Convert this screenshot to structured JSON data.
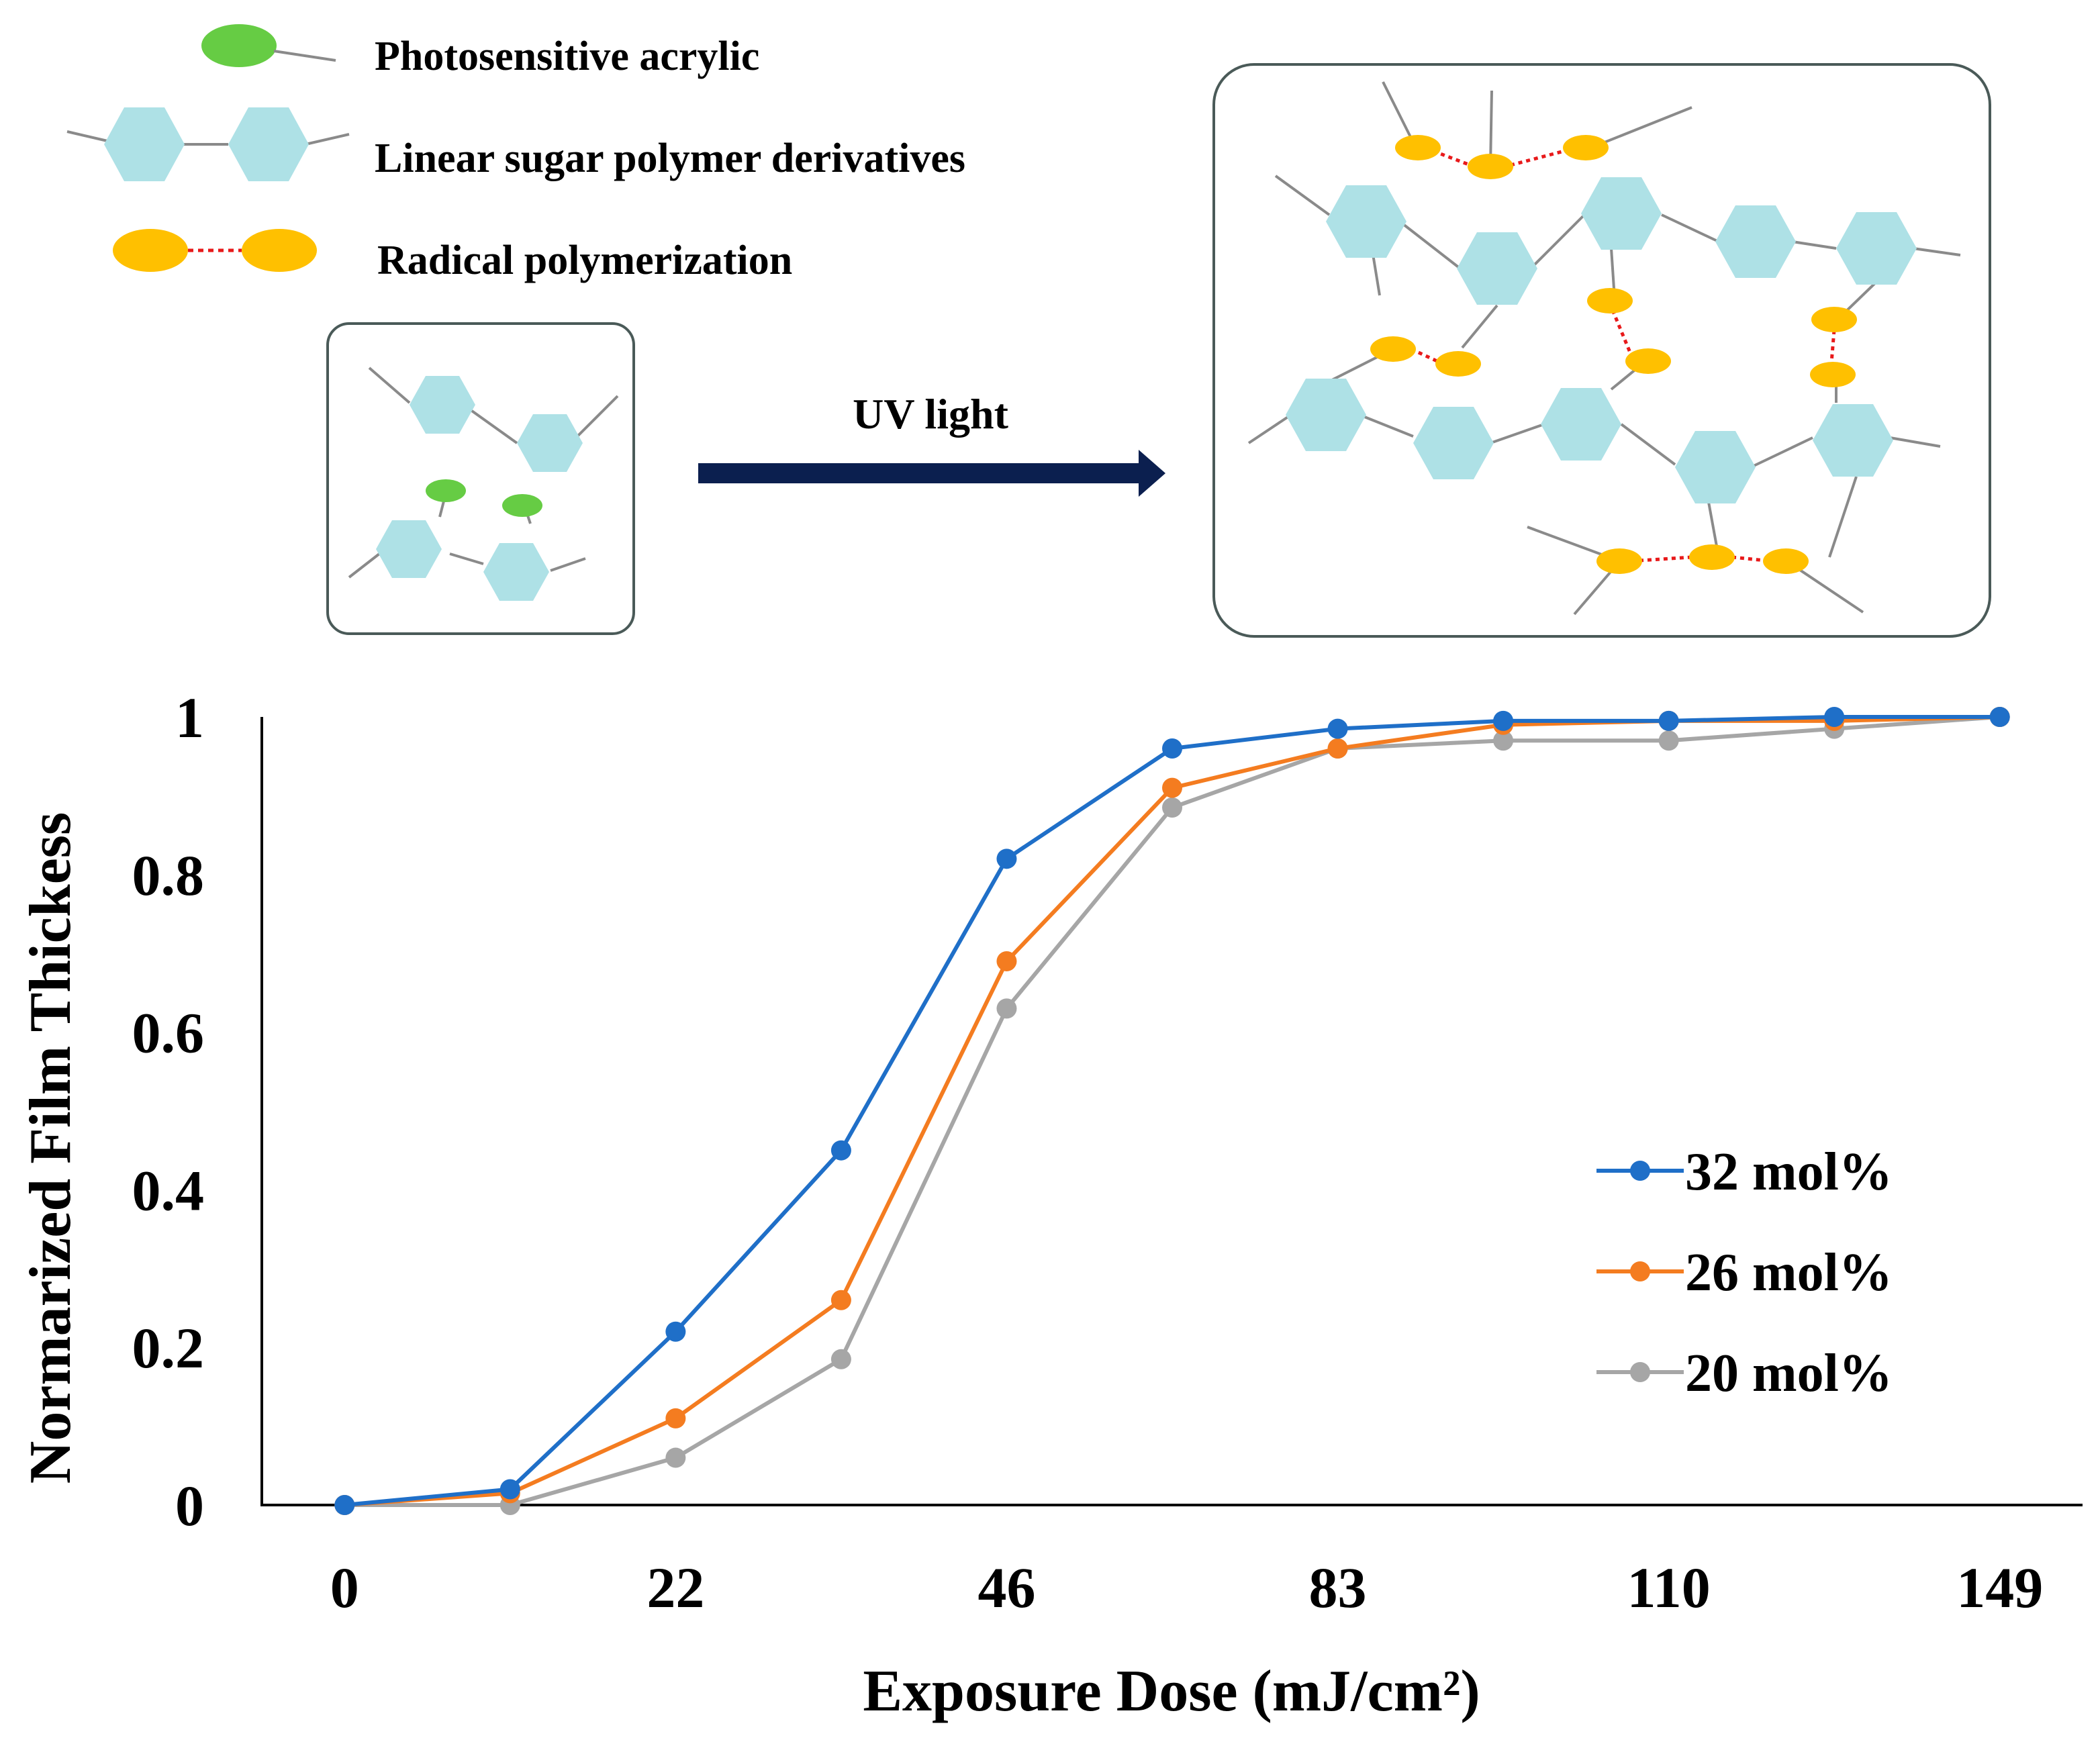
{
  "diagram": {
    "legend": [
      {
        "label": "Photosensitive acrylic",
        "icon": "green-ellipse-icon",
        "color": "#66cc44"
      },
      {
        "label": "Linear sugar polymer derivatives",
        "icon": "hexagon-pair-icon",
        "color": "#aee1e6"
      },
      {
        "label": "Radical polymerization",
        "icon": "yellow-ellipse-pair-icon",
        "color": "#ffc000"
      }
    ],
    "arrow_label": "UV light",
    "colors": {
      "hexagon": "#aee1e6",
      "acrylic": "#66cc44",
      "radical": "#ffc000",
      "bond": "#e8191a",
      "arrow": "#0b1f4f",
      "box_border": "#4a5a58",
      "line": "#8a8a8a"
    }
  },
  "chart_data": {
    "type": "line",
    "title": "",
    "xlabel": "Exposure Dose (mJ/cm²)",
    "ylabel": "Normarized Film Thickess",
    "x_tick_labels": [
      "0",
      "22",
      "46",
      "83",
      "110",
      "149"
    ],
    "y_tick_labels": [
      "0",
      "0.2",
      "0.4",
      "0.6",
      "0.8",
      "1"
    ],
    "ylim": [
      0,
      1
    ],
    "x_positions": [
      0,
      1,
      2,
      3,
      4,
      5,
      6,
      7,
      8,
      9,
      10
    ],
    "xlim": [
      -0.5,
      10.5
    ],
    "x_tick_positions": [
      0,
      2,
      4,
      6,
      8,
      10
    ],
    "series": [
      {
        "name": "32 mol%",
        "color": "#1f6fc8",
        "values": [
          0,
          0.02,
          0.22,
          0.45,
          0.82,
          0.96,
          0.985,
          0.995,
          0.995,
          1.0,
          1.0
        ]
      },
      {
        "name": "26 mol%",
        "color": "#f47c20",
        "values": [
          0,
          0.015,
          0.11,
          0.26,
          0.69,
          0.91,
          0.96,
          0.99,
          0.995,
          0.995,
          1.0
        ]
      },
      {
        "name": "20 mol%",
        "color": "#a6a6a6",
        "values": [
          0,
          0.0,
          0.06,
          0.185,
          0.63,
          0.885,
          0.96,
          0.97,
          0.97,
          0.985,
          1.0
        ]
      }
    ],
    "legend_position": "right",
    "grid": false
  }
}
